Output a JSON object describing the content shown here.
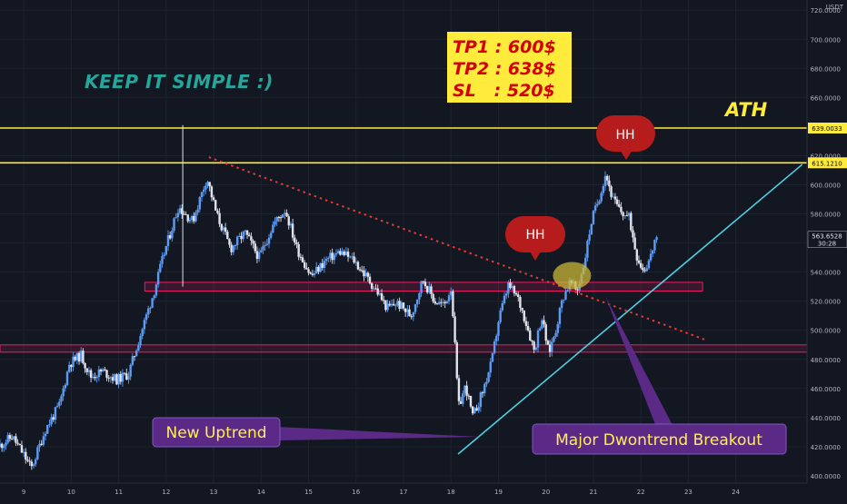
{
  "chart_data": {
    "type": "candlestick",
    "x_ticks": [
      "9",
      "10",
      "11",
      "12",
      "13",
      "14",
      "15",
      "16",
      "17",
      "18",
      "19",
      "20",
      "21",
      "22",
      "23",
      "24"
    ],
    "y_ticks": [
      "720.0000",
      "700.0000",
      "680.0000",
      "660.0000",
      "640.0000",
      "620.0000",
      "600.0000",
      "580.0000",
      "560.0000",
      "540.0000",
      "520.0000",
      "500.0000",
      "480.0000",
      "460.0000",
      "440.0000",
      "420.0000",
      "400.0000"
    ],
    "y_tick_values": [
      720,
      700,
      680,
      660,
      640,
      620,
      600,
      580,
      560,
      540,
      520,
      500,
      480,
      460,
      440,
      420,
      400
    ],
    "ylim": [
      395,
      727
    ],
    "xlim": [
      8.5,
      25.5
    ],
    "currency_label": "USDT",
    "price_path": [
      [
        8.5,
        420
      ],
      [
        8.8,
        427
      ],
      [
        9.05,
        414
      ],
      [
        9.2,
        405
      ],
      [
        9.5,
        432
      ],
      [
        9.8,
        449
      ],
      [
        10.0,
        477
      ],
      [
        10.25,
        483
      ],
      [
        10.45,
        468
      ],
      [
        10.7,
        472
      ],
      [
        11.0,
        466
      ],
      [
        11.25,
        470
      ],
      [
        11.5,
        497
      ],
      [
        11.8,
        528
      ],
      [
        12.0,
        553
      ],
      [
        12.3,
        585
      ],
      [
        12.6,
        575
      ],
      [
        12.9,
        605
      ],
      [
        13.1,
        580
      ],
      [
        13.4,
        556
      ],
      [
        13.7,
        567
      ],
      [
        14.0,
        550
      ],
      [
        14.3,
        573
      ],
      [
        14.55,
        583
      ],
      [
        14.8,
        556
      ],
      [
        15.1,
        537
      ],
      [
        15.4,
        548
      ],
      [
        15.7,
        554
      ],
      [
        16.0,
        548
      ],
      [
        16.3,
        535
      ],
      [
        16.5,
        526
      ],
      [
        16.7,
        515
      ],
      [
        16.9,
        519
      ],
      [
        17.2,
        510
      ],
      [
        17.45,
        535
      ],
      [
        17.7,
        520
      ],
      [
        17.9,
        517
      ],
      [
        18.05,
        530
      ],
      [
        18.2,
        447
      ],
      [
        18.35,
        462
      ],
      [
        18.5,
        440
      ],
      [
        18.7,
        457
      ],
      [
        18.9,
        478
      ],
      [
        19.05,
        508
      ],
      [
        19.25,
        531
      ],
      [
        19.45,
        522
      ],
      [
        19.6,
        508
      ],
      [
        19.8,
        486
      ],
      [
        19.95,
        510
      ],
      [
        20.1,
        484
      ],
      [
        20.25,
        501
      ],
      [
        20.4,
        523
      ],
      [
        20.55,
        533
      ],
      [
        20.7,
        527
      ],
      [
        20.85,
        547
      ],
      [
        21.0,
        575
      ],
      [
        21.15,
        590
      ],
      [
        21.3,
        608
      ],
      [
        21.45,
        590
      ],
      [
        21.6,
        582
      ],
      [
        21.8,
        577
      ],
      [
        21.95,
        552
      ],
      [
        22.1,
        541
      ],
      [
        22.25,
        551
      ],
      [
        22.35,
        564
      ]
    ],
    "seed": 11,
    "current_price": "563.6528",
    "countdown": "30:28",
    "levels": [
      {
        "price": 639.0033,
        "label": "639.0033"
      },
      {
        "price": 615.121,
        "label": "615.1210"
      }
    ],
    "zones": [
      {
        "from": 527,
        "to": 533
      },
      {
        "from": 485,
        "to": 490
      }
    ],
    "downtrend": {
      "from": [
        12.9,
        619
      ],
      "to": [
        23.4,
        493
      ]
    },
    "uptrend": {
      "from": [
        18.15,
        415
      ],
      "to": [
        25.4,
        614
      ]
    },
    "circle": {
      "at": [
        20.55,
        527
      ]
    },
    "wick_high": {
      "at": 12.35,
      "high": 641,
      "low": 530
    }
  },
  "annotations": {
    "headline": "KEEP IT SIMPLE :)",
    "ath": "ATH",
    "targets": [
      "TP1 : 600$",
      "TP2 : 638$",
      "SL   : 520$"
    ],
    "hh": "HH",
    "new_uptrend": "New Uptrend",
    "breakout": "Major Dwontrend Breakout"
  },
  "colors": {
    "background": "#131722",
    "up": "#5b9cf6",
    "down": "#e0e3eb",
    "level": "#ffeb3b",
    "zone": "#e91e63",
    "downtrend": "#e53935",
    "uptrend": "#4dd0e1",
    "hh_bubble": "#b71c1c",
    "callout": "#5b2a86",
    "callout_text": "#ffee58",
    "headline": "#26a69a",
    "target_box": "#ffeb3b",
    "target_text": "#d50000"
  }
}
